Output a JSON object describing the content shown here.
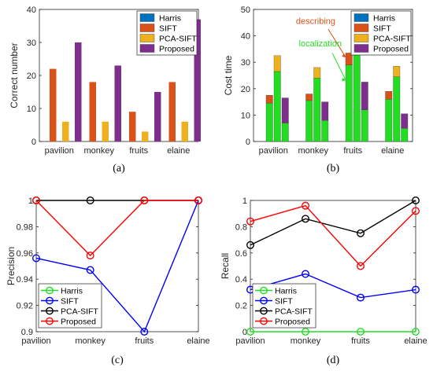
{
  "colors": {
    "harris": "#0072BD",
    "sift": "#D95319",
    "pcasift": "#EDB120",
    "proposed": "#7E2F8E",
    "localization": "#22DD22",
    "l_harris": "#22DD22",
    "l_sift": "#0000FF",
    "l_pcasift": "#000000",
    "l_proposed": "#FF0000"
  },
  "chart_data": [
    {
      "type": "bar",
      "panel_label": "(a)",
      "categories": [
        "pavilion",
        "monkey",
        "fruits",
        "elaine"
      ],
      "ylabel": "Correct number",
      "ylim": [
        0,
        40
      ],
      "yticks": [
        0,
        10,
        20,
        30,
        40
      ],
      "legend_position": "top-right",
      "series": [
        {
          "name": "Harris",
          "values": [
            0,
            0,
            0,
            0
          ]
        },
        {
          "name": "SIFT",
          "values": [
            22,
            18,
            9,
            18
          ]
        },
        {
          "name": "PCA-SIFT",
          "values": [
            6,
            6,
            3,
            6
          ]
        },
        {
          "name": "Proposed",
          "values": [
            30,
            23,
            15,
            37
          ]
        }
      ]
    },
    {
      "type": "bar",
      "stacked": true,
      "panel_label": "(b)",
      "categories": [
        "pavilion",
        "monkey",
        "fruits",
        "elaine"
      ],
      "ylabel": "Cost time",
      "ylim": [
        0,
        50
      ],
      "yticks": [
        0,
        10,
        20,
        30,
        40,
        50
      ],
      "legend_position": "top-right",
      "annotations": [
        "describing",
        "localization"
      ],
      "series": [
        {
          "name": "Harris",
          "localization": [
            0,
            0,
            0,
            0
          ],
          "describing": [
            0,
            0,
            0,
            0
          ]
        },
        {
          "name": "SIFT",
          "localization": [
            14.5,
            15.5,
            29,
            16
          ],
          "describing": [
            3,
            2.5,
            4.5,
            3
          ]
        },
        {
          "name": "PCA-SIFT",
          "localization": [
            26.5,
            24,
            44,
            24.5
          ],
          "describing": [
            6,
            4,
            5.5,
            4
          ]
        },
        {
          "name": "Proposed",
          "localization": [
            7,
            8,
            12,
            5
          ],
          "describing": [
            9.5,
            7,
            10.5,
            5.5
          ]
        }
      ]
    },
    {
      "type": "line",
      "panel_label": "(c)",
      "categories": [
        "pavilion",
        "monkey",
        "fruits",
        "elaine"
      ],
      "ylabel": "Precision",
      "ylim": [
        0.9,
        1
      ],
      "yticks": [
        "0.9",
        "0.92",
        "0.94",
        "0.96",
        "0.98",
        "1"
      ],
      "legend_position": "bottom-left",
      "series": [
        {
          "name": "Harris",
          "values": [
            null,
            null,
            null,
            null
          ]
        },
        {
          "name": "SIFT",
          "values": [
            0.956,
            0.947,
            0.9,
            1.0
          ]
        },
        {
          "name": "PCA-SIFT",
          "values": [
            1.0,
            1.0,
            1.0,
            1.0
          ]
        },
        {
          "name": "Proposed",
          "values": [
            1.0,
            0.958,
            1.0,
            1.0
          ]
        }
      ]
    },
    {
      "type": "line",
      "panel_label": "(d)",
      "categories": [
        "pavilion",
        "monkey",
        "fruits",
        "elaine"
      ],
      "ylabel": "Recall",
      "ylim": [
        0,
        1
      ],
      "yticks": [
        "0",
        "0.2",
        "0.4",
        "0.6",
        "0.8",
        "1"
      ],
      "legend_position": "bottom-left",
      "series": [
        {
          "name": "Harris",
          "values": [
            0,
            0,
            0,
            0
          ]
        },
        {
          "name": "SIFT",
          "values": [
            0.32,
            0.44,
            0.26,
            0.32
          ]
        },
        {
          "name": "PCA-SIFT",
          "values": [
            0.66,
            0.86,
            0.75,
            1.0
          ]
        },
        {
          "name": "Proposed",
          "values": [
            0.84,
            0.96,
            0.5,
            0.92
          ]
        }
      ]
    }
  ]
}
